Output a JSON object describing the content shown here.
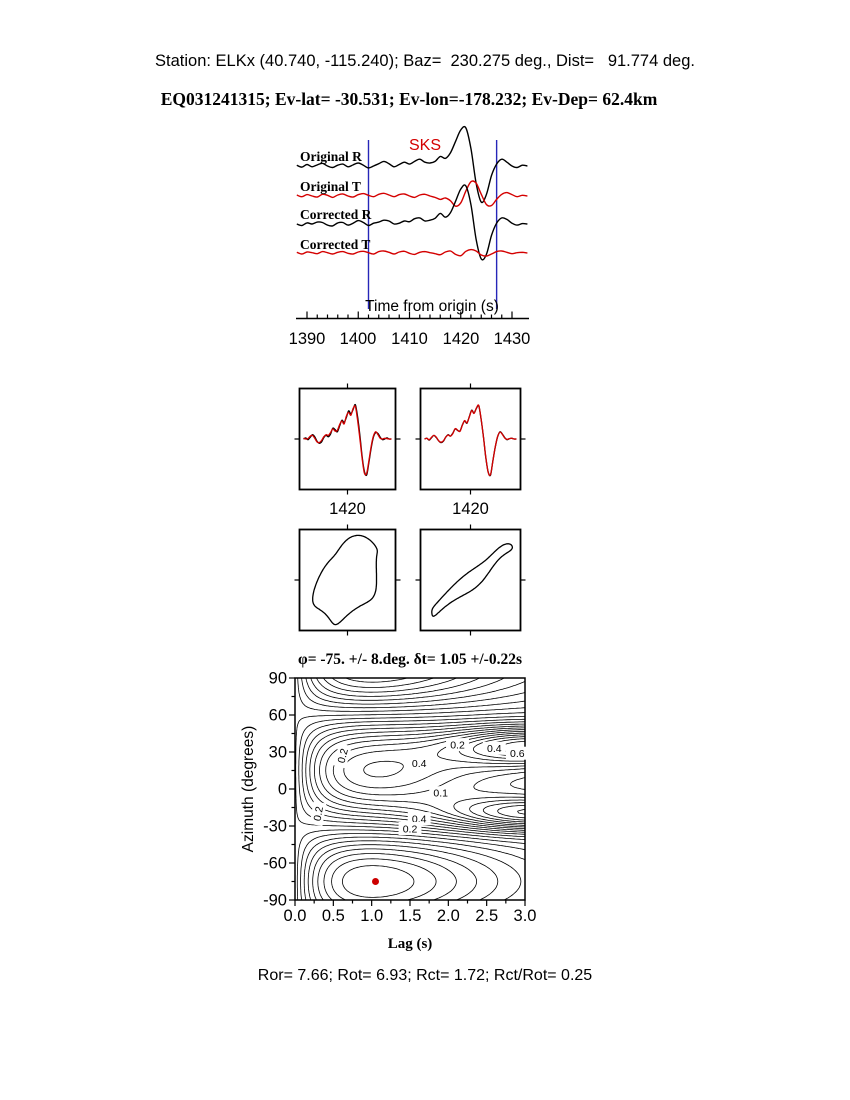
{
  "header": {
    "station_line": "Station: ELKx (40.740, -115.240); Baz=  230.275 deg., Dist=   91.774 deg.",
    "event_line": "EQ031241315; Ev-lat= -30.531; Ev-lon=-178.232; Ev-Dep= 62.4km"
  },
  "seismogram_panel": {
    "phase_label": "SKS",
    "traces": [
      {
        "label": "Original R"
      },
      {
        "label": "Original T"
      },
      {
        "label": "Corrected R"
      },
      {
        "label": "Corrected T"
      }
    ],
    "axis_label": "Time from origin (s)",
    "tick_labels": [
      "1390",
      "1400",
      "1410",
      "1420",
      "1430"
    ]
  },
  "waveform_compare": {
    "left_tick_label": "1420",
    "right_tick_label": "1420"
  },
  "splitting_map": {
    "title": "φ= -75. +/- 8.deg. δt= 1.05 +/-0.22s",
    "ylabel": "Azimuth (degrees)",
    "xlabel": "Lag (s)",
    "ytick_labels": [
      "90",
      "60",
      "30",
      "0",
      "-30",
      "-60",
      "-90"
    ],
    "xtick_labels": [
      "0.0",
      "0.5",
      "1.0",
      "1.5",
      "2.0",
      "2.5",
      "3.0"
    ]
  },
  "footer": {
    "stats_line": "Ror= 7.66; Rot= 6.93; Rct= 1.72; Rct/Rot= 0.25"
  },
  "colors": {
    "trace_black": "#000000",
    "trace_red": "#d40000",
    "window_blue": "#2626b8",
    "dot_red": "#cc0000"
  },
  "chart_data": {
    "seismograms": {
      "type": "line",
      "x_start": 1388,
      "x_step": 1,
      "window_lines_s": [
        1402,
        1427
      ],
      "x_axis": {
        "min": 1390,
        "max": 1430,
        "major": 10,
        "minor": 2
      },
      "series": [
        {
          "name": "Original R",
          "color": "#000000",
          "amp": 38,
          "values": [
            0.02,
            -0.03,
            0.04,
            -0.02,
            0.03,
            0.07,
            0.0,
            -0.04,
            0.02,
            0.05,
            -0.02,
            0.03,
            0.08,
            0.02,
            -0.05,
            0.0,
            0.06,
            0.12,
            0.06,
            -0.02,
            0.04,
            0.1,
            0.05,
            0.12,
            0.18,
            0.1,
            0.08,
            0.12,
            0.25,
            0.2,
            0.35,
            0.65,
            0.95,
            1.0,
            0.45,
            -0.45,
            -0.95,
            -0.75,
            -0.25,
            0.05,
            0.18,
            0.1,
            0.0,
            -0.04,
            0.02,
            0.0
          ]
        },
        {
          "name": "Original T",
          "color": "#d40000",
          "amp": 34,
          "values": [
            0.03,
            -0.02,
            0.04,
            0.0,
            -0.03,
            0.05,
            0.02,
            -0.04,
            0.03,
            0.06,
            0.0,
            -0.03,
            0.04,
            0.07,
            0.02,
            -0.02,
            0.05,
            0.08,
            0.03,
            -0.02,
            0.04,
            0.06,
            0.0,
            -0.04,
            0.03,
            0.05,
            0.0,
            -0.04,
            -0.1,
            -0.06,
            -0.14,
            -0.3,
            -0.2,
            0.15,
            0.42,
            0.38,
            0.05,
            -0.25,
            -0.28,
            -0.1,
            0.05,
            0.1,
            0.04,
            -0.02,
            0.02,
            0.0
          ]
        },
        {
          "name": "Corrected R",
          "color": "#000000",
          "amp": 38,
          "values": [
            0.0,
            -0.04,
            0.03,
            0.0,
            0.05,
            0.04,
            -0.03,
            -0.05,
            0.03,
            0.04,
            -0.03,
            0.02,
            0.09,
            0.04,
            -0.04,
            0.02,
            0.05,
            0.1,
            0.08,
            0.0,
            0.02,
            0.08,
            0.06,
            0.14,
            0.16,
            0.08,
            0.1,
            0.15,
            0.28,
            0.18,
            0.3,
            0.6,
            0.92,
            1.0,
            0.5,
            -0.4,
            -0.92,
            -0.8,
            -0.3,
            0.02,
            0.16,
            0.12,
            0.02,
            -0.03,
            0.01,
            0.0
          ]
        },
        {
          "name": "Corrected T",
          "color": "#d40000",
          "amp": 34,
          "values": [
            0.02,
            -0.03,
            0.03,
            0.01,
            -0.02,
            0.04,
            0.01,
            -0.03,
            0.02,
            0.04,
            -0.01,
            -0.03,
            0.03,
            0.05,
            0.01,
            -0.03,
            0.04,
            0.06,
            0.02,
            -0.03,
            0.03,
            0.05,
            -0.01,
            -0.04,
            0.02,
            0.04,
            0.01,
            -0.02,
            -0.05,
            0.03,
            0.06,
            -0.04,
            -0.08,
            0.05,
            0.1,
            0.06,
            -0.06,
            -0.09,
            -0.03,
            0.04,
            0.06,
            0.02,
            -0.02,
            0.01,
            0.02,
            0.0
          ]
        }
      ]
    },
    "compare_panels": [
      {
        "tick": "1420",
        "series": [
          {
            "color": "#000000",
            "values": [
              0.0,
              0.03,
              -0.02,
              0.05,
              0.12,
              0.06,
              -0.06,
              -0.12,
              -0.08,
              0.04,
              0.1,
              0.06,
              0.14,
              0.3,
              0.26,
              0.2,
              0.36,
              0.52,
              0.46,
              0.6,
              0.78,
              0.7,
              0.82,
              0.95,
              0.6,
              0.1,
              -0.5,
              -0.9,
              -1.0,
              -0.65,
              -0.25,
              0.05,
              0.18,
              0.15,
              0.05,
              -0.02,
              0.0,
              0.03,
              0.0,
              0.0
            ]
          },
          {
            "color": "#d40000",
            "values": [
              0.02,
              0.0,
              0.01,
              0.08,
              0.1,
              0.02,
              -0.08,
              -0.1,
              -0.04,
              0.06,
              0.12,
              0.1,
              0.18,
              0.28,
              0.22,
              0.24,
              0.4,
              0.5,
              0.42,
              0.64,
              0.74,
              0.66,
              0.85,
              0.9,
              0.5,
              0.0,
              -0.55,
              -0.95,
              -0.95,
              -0.6,
              -0.2,
              0.08,
              0.2,
              0.12,
              0.02,
              0.0,
              0.02,
              0.01,
              0.0,
              0.0
            ]
          }
        ]
      },
      {
        "tick": "1420",
        "series": [
          {
            "color": "#000000",
            "values": [
              0.0,
              0.02,
              -0.03,
              0.04,
              0.1,
              0.04,
              -0.05,
              -0.1,
              -0.06,
              0.05,
              0.12,
              0.08,
              0.16,
              0.28,
              0.24,
              0.22,
              0.38,
              0.5,
              0.44,
              0.62,
              0.8,
              0.72,
              0.85,
              0.92,
              0.55,
              0.05,
              -0.52,
              -0.92,
              -1.0,
              -0.6,
              -0.22,
              0.06,
              0.2,
              0.14,
              0.04,
              -0.02,
              0.01,
              0.02,
              0.0,
              0.0
            ]
          },
          {
            "color": "#d40000",
            "values": [
              0.0,
              0.02,
              -0.02,
              0.05,
              0.1,
              0.05,
              -0.05,
              -0.09,
              -0.05,
              0.05,
              0.11,
              0.08,
              0.15,
              0.29,
              0.25,
              0.21,
              0.37,
              0.51,
              0.45,
              0.61,
              0.79,
              0.71,
              0.86,
              0.93,
              0.56,
              0.04,
              -0.5,
              -0.93,
              -0.98,
              -0.61,
              -0.21,
              0.07,
              0.19,
              0.13,
              0.03,
              -0.01,
              0.01,
              0.02,
              0.0,
              0.0
            ]
          }
        ]
      }
    ],
    "particle_motion": [
      {
        "name": "original",
        "a": 45,
        "b": 27,
        "angle_deg": -62,
        "wobble": 3
      },
      {
        "name": "corrected",
        "a": 53,
        "b": 7,
        "angle_deg": -41,
        "wobble": 1.6
      }
    ],
    "error_surface": {
      "type": "contour",
      "xlim": [
        0,
        3
      ],
      "ylim": [
        -90,
        90
      ],
      "phi_deg": -75,
      "dt_s": 1.05,
      "n_levels": 24,
      "best": {
        "lag": 1.05,
        "azimuth": -75
      },
      "lobes": [
        {
          "lag": 3.15,
          "az": 35,
          "amp": 0.55,
          "st": 1.2,
          "sa": 16
        },
        {
          "lag": 3.15,
          "az": -20,
          "amp": 0.5,
          "st": 1.4,
          "sa": 14
        }
      ],
      "labels": [
        {
          "text": "0.2",
          "lag": 0.62,
          "az": 27,
          "rot": -75
        },
        {
          "text": "0.4",
          "lag": 1.62,
          "az": 21,
          "rot": 0
        },
        {
          "text": "0.2",
          "lag": 2.12,
          "az": 36,
          "rot": 0
        },
        {
          "text": "0.4",
          "lag": 2.6,
          "az": 33,
          "rot": 0
        },
        {
          "text": "0.6",
          "lag": 2.9,
          "az": 29,
          "rot": 0
        },
        {
          "text": "0.1",
          "lag": 1.9,
          "az": -3,
          "rot": 0
        },
        {
          "text": "0.2",
          "lag": 0.3,
          "az": -20,
          "rot": -80
        },
        {
          "text": "0.4",
          "lag": 1.62,
          "az": -24,
          "rot": 0
        },
        {
          "text": "0.2",
          "lag": 1.5,
          "az": -32,
          "rot": 0
        }
      ]
    }
  }
}
